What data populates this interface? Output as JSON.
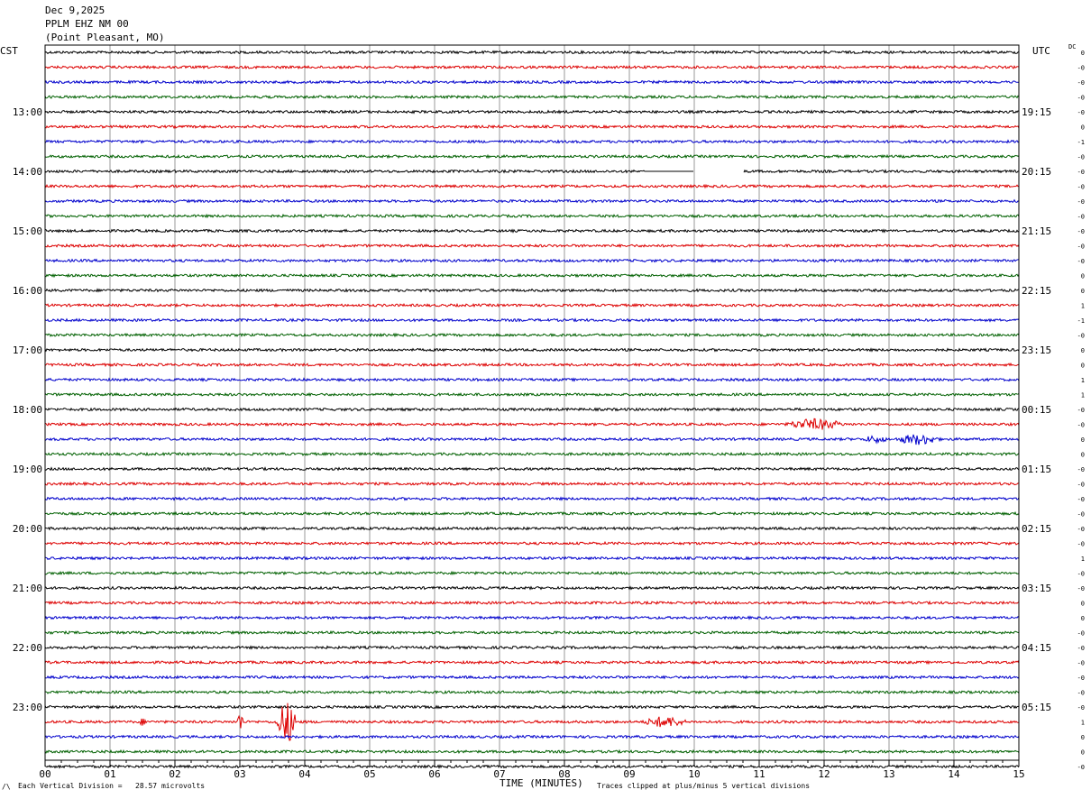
{
  "header": {
    "date": "Dec 9,2025",
    "station": "PPLM EHZ NM 00",
    "location": "(Point Pleasant, MO)"
  },
  "left_zone": "CST",
  "right_zone": "UTC",
  "dc_label": "DC",
  "footer": {
    "scale_text": "Each Vertical Division =   28.57 microvolts",
    "scale_glyph": "/\\",
    "clip_text": "Traces clipped at plus/minus 5 vertical divisions"
  },
  "chart_data": {
    "type": "line",
    "title": "",
    "xlabel": "TIME (MINUTES)",
    "ylabel": "",
    "xlim": [
      0,
      15
    ],
    "x_ticks": [
      "00",
      "01",
      "02",
      "03",
      "04",
      "05",
      "06",
      "07",
      "08",
      "09",
      "10",
      "11",
      "12",
      "13",
      "14",
      "15"
    ],
    "trace_colors": [
      "#000000",
      "#dd0000",
      "#0000cc",
      "#006000"
    ],
    "traces_per_hour": 4,
    "left_hour_labels": [
      "13:00",
      "14:00",
      "15:00",
      "16:00",
      "17:00",
      "18:00",
      "19:00",
      "20:00",
      "21:00",
      "22:00",
      "23:00"
    ],
    "right_hour_labels": [
      "19:15",
      "20:15",
      "21:15",
      "22:15",
      "23:15",
      "00:15",
      "01:15",
      "02:15",
      "03:15",
      "04:15",
      "05:15"
    ],
    "dc_offsets": [
      "0",
      "-0",
      "-0",
      "-0",
      "-0",
      "0",
      "-1",
      "-0",
      "-0",
      "-0",
      "-0",
      "-0",
      "-0",
      "-0",
      "-0",
      "0",
      "0",
      "1",
      "-1",
      "-0",
      "0",
      "0",
      "1",
      "1",
      "-0",
      "-0",
      "0",
      "0",
      "-0",
      "-0",
      "-0",
      "-0",
      "-0",
      "-0",
      "1",
      "-0",
      "-0",
      "0",
      "0",
      "-0",
      "-0",
      "-0",
      "-0",
      "-0",
      "-0",
      "1",
      "0",
      "0",
      "-0"
    ],
    "events": [
      {
        "trace": 25,
        "x_minutes": [
          11.4,
          12.6
        ],
        "relative_amplitude": "moderate"
      },
      {
        "trace": 26,
        "x_minutes": [
          12.6,
          13.1
        ],
        "relative_amplitude": "small"
      },
      {
        "trace": 26,
        "x_minutes": [
          13.1,
          14.0
        ],
        "relative_amplitude": "moderate"
      },
      {
        "trace": 45,
        "x_minutes": [
          2.95,
          3.1
        ],
        "relative_amplitude": "large"
      },
      {
        "trace": 45,
        "x_minutes": [
          3.55,
          4.0
        ],
        "relative_amplitude": "very large"
      },
      {
        "trace": 45,
        "x_minutes": [
          9.2,
          10.1
        ],
        "relative_amplitude": "moderate"
      },
      {
        "trace": 45,
        "x_minutes": [
          1.45,
          1.6
        ],
        "relative_amplitude": "small"
      }
    ],
    "gaps": [
      {
        "trace": 8,
        "x_minutes": [
          9.25,
          10.0
        ],
        "kind": "flat line"
      },
      {
        "trace": 8,
        "x_minutes": [
          10.0,
          10.75
        ],
        "kind": "no data"
      }
    ]
  }
}
